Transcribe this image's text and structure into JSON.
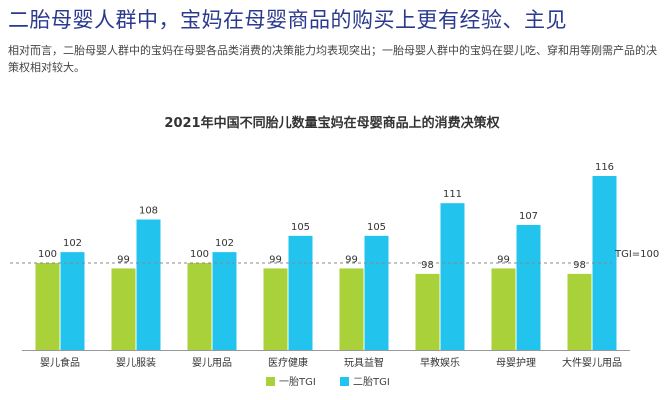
{
  "header": {
    "headline": "二胎母婴人群中，宝妈在母婴商品的购买上更有经验、主见",
    "description": "相对而言，二胎母婴人群中的宝妈在母婴各品类消费的决策能力均表现突出；一胎母婴人群中的宝妈在婴儿吃、穿和用等刚需产品的决策权相对较大。"
  },
  "chart_data": {
    "type": "bar",
    "title": "2021年中国不同胎儿数量宝妈在母婴商品上的消费决策权",
    "categories": [
      "婴儿食品",
      "婴儿服装",
      "婴儿用品",
      "医疗健康",
      "玩具益智",
      "早教娱乐",
      "母婴护理",
      "大件婴儿用品"
    ],
    "series": [
      {
        "name": "一胎TGI",
        "color": "#a9d13a",
        "values": [
          100,
          99,
          100,
          99,
          99,
          98,
          99,
          98
        ]
      },
      {
        "name": "二胎TGI",
        "color": "#22c4ee",
        "values": [
          102,
          108,
          102,
          105,
          105,
          111,
          107,
          116
        ]
      }
    ],
    "reference_line": {
      "label": "TGI=100",
      "value": 100
    },
    "legend_position": "bottom",
    "grid": false
  }
}
